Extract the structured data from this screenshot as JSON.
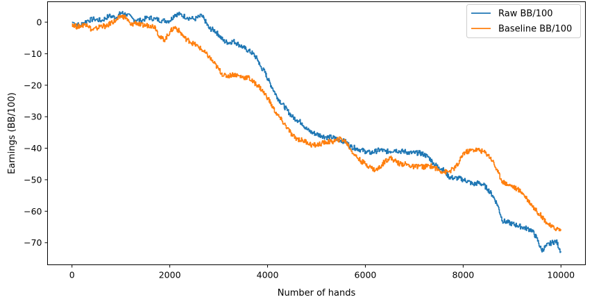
{
  "chart_data": {
    "type": "line",
    "title": "",
    "xlabel": "Number of hands",
    "ylabel": "Earnings (BB/100)",
    "xlim": [
      -500,
      10500
    ],
    "ylim": [
      -77,
      6.5
    ],
    "xticks": [
      0,
      2000,
      4000,
      6000,
      8000,
      10000
    ],
    "xtick_labels": [
      "0",
      "2000",
      "4000",
      "6000",
      "8000",
      "10000"
    ],
    "yticks": [
      0,
      -10,
      -20,
      -30,
      -40,
      -50,
      -60,
      -70
    ],
    "ytick_labels": [
      "0",
      "−10",
      "−20",
      "−30",
      "−40",
      "−50",
      "−60",
      "−70"
    ],
    "grid": false,
    "legend_position": "top-right",
    "series": [
      {
        "name": "Raw BB/100",
        "color": "#1f77b4",
        "points": [
          [
            0,
            0
          ],
          [
            150,
            -1
          ],
          [
            300,
            0.5
          ],
          [
            450,
            1
          ],
          [
            600,
            0.5
          ],
          [
            750,
            2
          ],
          [
            900,
            1.5
          ],
          [
            1000,
            3
          ],
          [
            1100,
            2.5
          ],
          [
            1250,
            1
          ],
          [
            1400,
            0.5
          ],
          [
            1550,
            1.5
          ],
          [
            1700,
            1
          ],
          [
            1850,
            0.5
          ],
          [
            2000,
            0.5
          ],
          [
            2100,
            2.5
          ],
          [
            2200,
            2.5
          ],
          [
            2350,
            1.5
          ],
          [
            2500,
            1
          ],
          [
            2650,
            2
          ],
          [
            2700,
            1
          ],
          [
            2800,
            -2
          ],
          [
            2900,
            -2.5
          ],
          [
            3000,
            -4
          ],
          [
            3100,
            -6
          ],
          [
            3200,
            -6.5
          ],
          [
            3300,
            -6
          ],
          [
            3400,
            -7
          ],
          [
            3500,
            -8
          ],
          [
            3600,
            -9
          ],
          [
            3700,
            -10
          ],
          [
            3800,
            -12
          ],
          [
            3850,
            -14
          ],
          [
            3950,
            -16
          ],
          [
            4000,
            -18
          ],
          [
            4100,
            -21
          ],
          [
            4200,
            -24
          ],
          [
            4300,
            -26
          ],
          [
            4400,
            -28
          ],
          [
            4500,
            -30
          ],
          [
            4600,
            -31
          ],
          [
            4700,
            -32
          ],
          [
            4800,
            -34
          ],
          [
            4900,
            -35
          ],
          [
            5000,
            -35.5
          ],
          [
            5100,
            -36
          ],
          [
            5200,
            -36.5
          ],
          [
            5300,
            -36.5
          ],
          [
            5400,
            -37
          ],
          [
            5500,
            -37.5
          ],
          [
            5600,
            -38
          ],
          [
            5700,
            -39.5
          ],
          [
            5800,
            -40
          ],
          [
            5900,
            -40.5
          ],
          [
            6000,
            -41
          ],
          [
            6100,
            -41.5
          ],
          [
            6200,
            -41
          ],
          [
            6300,
            -40.5
          ],
          [
            6400,
            -41
          ],
          [
            6500,
            -41
          ],
          [
            6600,
            -40.5
          ],
          [
            6700,
            -41
          ],
          [
            6800,
            -41
          ],
          [
            6900,
            -41.5
          ],
          [
            7000,
            -41.5
          ],
          [
            7100,
            -41.5
          ],
          [
            7200,
            -42
          ],
          [
            7300,
            -43
          ],
          [
            7400,
            -45
          ],
          [
            7500,
            -46
          ],
          [
            7600,
            -47
          ],
          [
            7700,
            -49
          ],
          [
            7800,
            -49.5
          ],
          [
            7900,
            -49.5
          ],
          [
            8000,
            -50
          ],
          [
            8100,
            -50.5
          ],
          [
            8200,
            -51.5
          ],
          [
            8300,
            -51
          ],
          [
            8400,
            -51.5
          ],
          [
            8500,
            -53
          ],
          [
            8600,
            -55
          ],
          [
            8700,
            -58
          ],
          [
            8800,
            -63
          ],
          [
            8900,
            -63.5
          ],
          [
            9000,
            -64
          ],
          [
            9100,
            -64.5
          ],
          [
            9200,
            -65
          ],
          [
            9300,
            -65.5
          ],
          [
            9400,
            -66
          ],
          [
            9500,
            -68.5
          ],
          [
            9600,
            -72.5
          ],
          [
            9700,
            -71
          ],
          [
            9800,
            -70
          ],
          [
            9900,
            -69.5
          ],
          [
            10000,
            -73
          ]
        ]
      },
      {
        "name": "Baseline BB/100",
        "color": "#ff7f0e",
        "points": [
          [
            0,
            -0.5
          ],
          [
            100,
            -1.5
          ],
          [
            200,
            -1
          ],
          [
            300,
            -0.5
          ],
          [
            400,
            -2.5
          ],
          [
            500,
            -2
          ],
          [
            600,
            -1
          ],
          [
            700,
            -1.5
          ],
          [
            800,
            0
          ],
          [
            900,
            0.5
          ],
          [
            1000,
            2
          ],
          [
            1100,
            1.5
          ],
          [
            1200,
            -1
          ],
          [
            1300,
            0
          ],
          [
            1400,
            -1
          ],
          [
            1500,
            -1
          ],
          [
            1600,
            -1
          ],
          [
            1700,
            -1.5
          ],
          [
            1800,
            -5
          ],
          [
            1900,
            -5.5
          ],
          [
            2000,
            -3
          ],
          [
            2100,
            -1.5
          ],
          [
            2200,
            -3
          ],
          [
            2300,
            -5
          ],
          [
            2400,
            -6
          ],
          [
            2500,
            -7
          ],
          [
            2600,
            -8
          ],
          [
            2700,
            -9.5
          ],
          [
            2800,
            -11
          ],
          [
            2900,
            -13
          ],
          [
            3000,
            -15
          ],
          [
            3100,
            -17
          ],
          [
            3200,
            -17
          ],
          [
            3300,
            -16.5
          ],
          [
            3400,
            -17
          ],
          [
            3500,
            -17.5
          ],
          [
            3600,
            -17.5
          ],
          [
            3700,
            -19
          ],
          [
            3800,
            -20
          ],
          [
            3900,
            -22
          ],
          [
            4000,
            -24
          ],
          [
            4100,
            -27
          ],
          [
            4200,
            -29.5
          ],
          [
            4300,
            -31.5
          ],
          [
            4400,
            -33.5
          ],
          [
            4500,
            -36
          ],
          [
            4600,
            -37
          ],
          [
            4700,
            -37.5
          ],
          [
            4800,
            -38
          ],
          [
            4900,
            -39
          ],
          [
            5000,
            -39
          ],
          [
            5100,
            -38.5
          ],
          [
            5200,
            -38
          ],
          [
            5300,
            -38
          ],
          [
            5400,
            -37.5
          ],
          [
            5500,
            -37
          ],
          [
            5600,
            -38
          ],
          [
            5700,
            -40.5
          ],
          [
            5800,
            -42.5
          ],
          [
            5900,
            -44
          ],
          [
            6000,
            -45
          ],
          [
            6100,
            -46
          ],
          [
            6200,
            -47
          ],
          [
            6300,
            -46
          ],
          [
            6400,
            -44
          ],
          [
            6500,
            -43
          ],
          [
            6600,
            -44
          ],
          [
            6700,
            -45
          ],
          [
            6800,
            -45
          ],
          [
            6900,
            -45.5
          ],
          [
            7000,
            -46
          ],
          [
            7100,
            -45.5
          ],
          [
            7200,
            -46
          ],
          [
            7300,
            -45.5
          ],
          [
            7400,
            -46
          ],
          [
            7500,
            -47
          ],
          [
            7600,
            -47.5
          ],
          [
            7700,
            -47.5
          ],
          [
            7800,
            -46.5
          ],
          [
            7900,
            -45
          ],
          [
            8000,
            -41.5
          ],
          [
            8100,
            -41
          ],
          [
            8200,
            -40.5
          ],
          [
            8300,
            -40.5
          ],
          [
            8400,
            -41
          ],
          [
            8500,
            -42
          ],
          [
            8600,
            -44
          ],
          [
            8700,
            -47.5
          ],
          [
            8800,
            -50.5
          ],
          [
            8900,
            -51.5
          ],
          [
            9000,
            -52
          ],
          [
            9100,
            -53
          ],
          [
            9200,
            -54
          ],
          [
            9300,
            -56
          ],
          [
            9400,
            -58
          ],
          [
            9500,
            -60
          ],
          [
            9600,
            -61.5
          ],
          [
            9700,
            -63.5
          ],
          [
            9800,
            -65
          ],
          [
            9900,
            -65.5
          ],
          [
            10000,
            -66
          ]
        ]
      }
    ]
  }
}
